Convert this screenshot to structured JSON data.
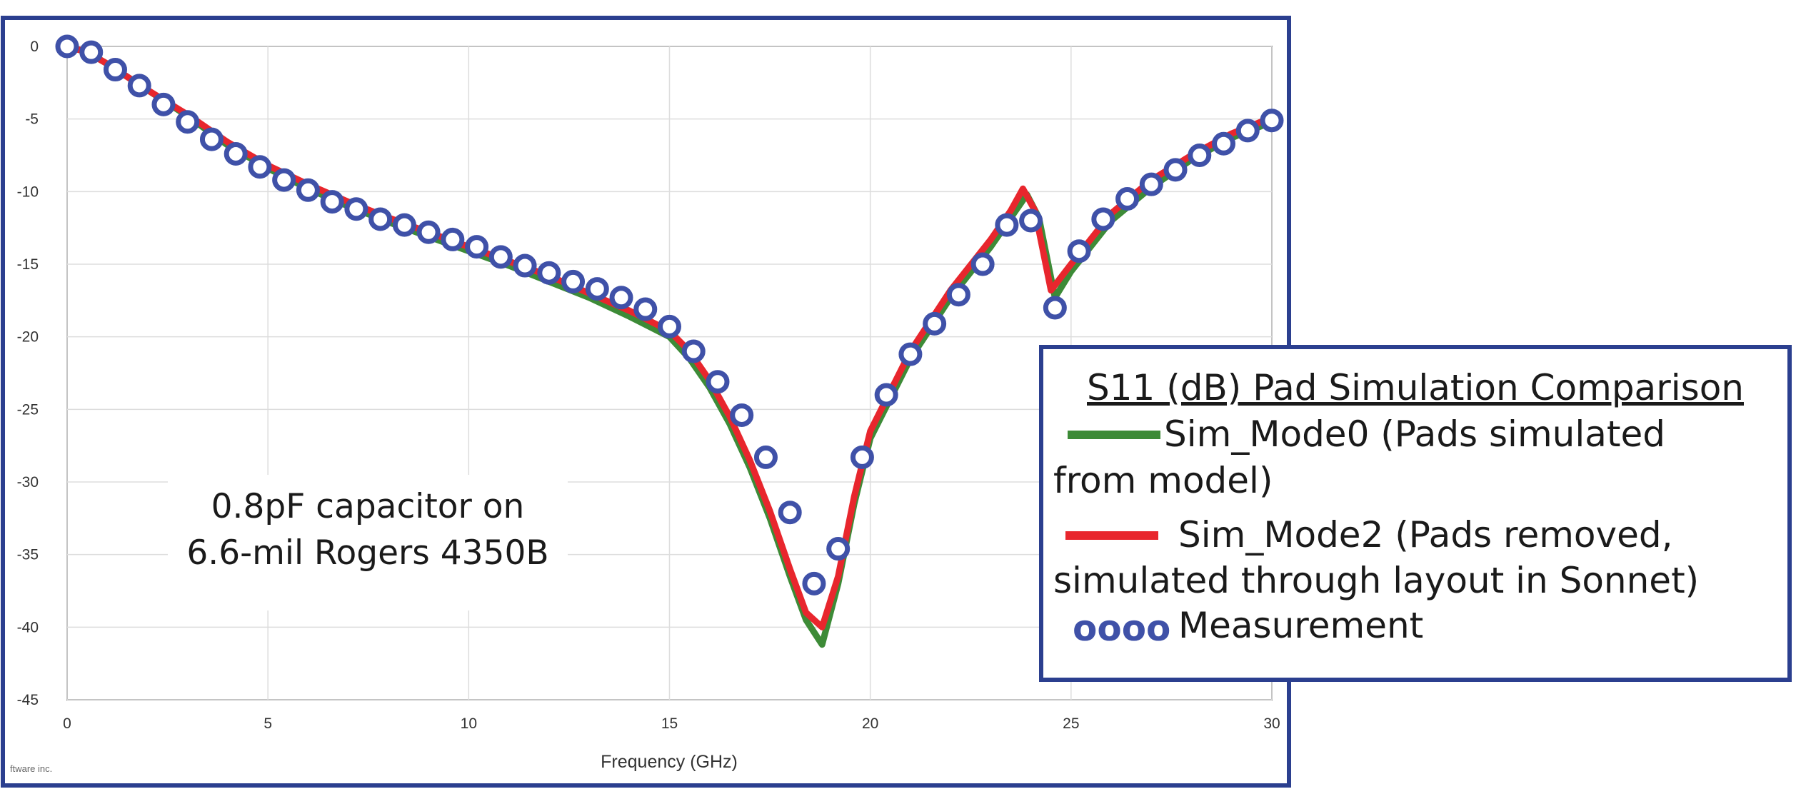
{
  "chart_data": {
    "type": "line",
    "xlabel": "Frequency (GHz)",
    "ylabel": "",
    "xlim": [
      0,
      30
    ],
    "ylim": [
      -45,
      0
    ],
    "xticks": [
      0,
      5,
      10,
      15,
      20,
      25,
      30
    ],
    "yticks": [
      0,
      -5,
      -10,
      -15,
      -20,
      -25,
      -30,
      -35,
      -40,
      -45
    ],
    "grid": true,
    "annotation": [
      "0.8pF capacitor on",
      "6.6-mil Rogers 4350B"
    ],
    "credit": "ftware inc.",
    "legend": {
      "title": "S11 (dB) Pad Simulation Comparison",
      "position": "right",
      "entries": [
        {
          "series": "Sim_Mode0",
          "lines": [
            "Sim_Mode0 (Pads simulated",
            "from model)"
          ]
        },
        {
          "series": "Sim_Mode2",
          "lines": [
            "Sim_Mode2 (Pads removed,",
            "simulated through layout in Sonnet)"
          ]
        },
        {
          "series": "Measurement",
          "lines": [
            "Measurement"
          ],
          "marker_glyphs": "oooo"
        }
      ]
    },
    "series": [
      {
        "name": "Sim_Mode0",
        "kind": "line",
        "color": "#3d8b37",
        "x": [
          0,
          0.5,
          1,
          1.5,
          2,
          3,
          4,
          5,
          6,
          7,
          8,
          9,
          10,
          11,
          12,
          13,
          14,
          15,
          15.5,
          16,
          16.5,
          17,
          17.5,
          18,
          18.4,
          18.8,
          19.2,
          19.6,
          20,
          21,
          22,
          23,
          23.5,
          23.9,
          24.2,
          24.6,
          25,
          26,
          27,
          28,
          29,
          30
        ],
        "y": [
          0,
          -0.4,
          -1.2,
          -2.1,
          -3.0,
          -4.8,
          -6.8,
          -8.4,
          -9.8,
          -11.0,
          -12.1,
          -13.1,
          -14.1,
          -15.1,
          -16.2,
          -17.3,
          -18.6,
          -20.0,
          -21.5,
          -23.5,
          -26.0,
          -29.0,
          -32.5,
          -36.5,
          -39.5,
          -41.2,
          -37.0,
          -31.5,
          -27.0,
          -21.5,
          -17.3,
          -13.8,
          -11.8,
          -10.2,
          -11.8,
          -17.3,
          -15.5,
          -12.0,
          -9.7,
          -7.8,
          -6.3,
          -5.2
        ]
      },
      {
        "name": "Sim_Mode2",
        "kind": "line",
        "color": "#e8262d",
        "x": [
          0,
          0.5,
          1,
          1.5,
          2,
          3,
          4,
          5,
          6,
          7,
          8,
          9,
          10,
          11,
          12,
          13,
          14,
          15,
          15.5,
          16,
          16.5,
          17,
          17.5,
          18,
          18.4,
          18.8,
          19.2,
          19.6,
          20,
          21,
          22,
          23,
          23.5,
          23.8,
          24.1,
          24.5,
          25,
          26,
          27,
          28,
          29,
          30
        ],
        "y": [
          0,
          -0.4,
          -1.2,
          -2.1,
          -3.0,
          -4.7,
          -6.6,
          -8.2,
          -9.5,
          -10.7,
          -11.8,
          -12.8,
          -13.8,
          -14.8,
          -15.8,
          -17.0,
          -18.2,
          -19.6,
          -21.0,
          -23.0,
          -25.5,
          -28.5,
          -32.0,
          -36.0,
          -39.0,
          -40.0,
          -36.5,
          -31.0,
          -26.5,
          -21.0,
          -16.8,
          -13.3,
          -11.3,
          -9.8,
          -11.3,
          -16.8,
          -15.0,
          -11.5,
          -9.2,
          -7.5,
          -6.0,
          -4.9
        ]
      },
      {
        "name": "Measurement",
        "kind": "markers",
        "color": "#3f51a8",
        "x": [
          0,
          0.6,
          1.2,
          1.8,
          2.4,
          3.0,
          3.6,
          4.2,
          4.8,
          5.4,
          6.0,
          6.6,
          7.2,
          7.8,
          8.4,
          9.0,
          9.6,
          10.2,
          10.8,
          11.4,
          12.0,
          12.6,
          13.2,
          13.8,
          14.4,
          15.0,
          15.6,
          16.2,
          16.8,
          17.4,
          18.0,
          18.6,
          19.2,
          19.8,
          20.4,
          21.0,
          21.6,
          22.2,
          22.8,
          23.4,
          24.0,
          24.6,
          25.2,
          25.8,
          26.4,
          27.0,
          27.6,
          28.2,
          28.8,
          29.4,
          30.0
        ],
        "y": [
          0,
          -0.4,
          -1.6,
          -2.7,
          -4.0,
          -5.2,
          -6.4,
          -7.4,
          -8.3,
          -9.2,
          -9.9,
          -10.7,
          -11.2,
          -11.9,
          -12.3,
          -12.8,
          -13.3,
          -13.8,
          -14.5,
          -15.1,
          -15.6,
          -16.2,
          -16.7,
          -17.3,
          -18.1,
          -19.3,
          -21.0,
          -23.1,
          -25.4,
          -28.3,
          -32.1,
          -37.0,
          -34.6,
          -28.3,
          -24.0,
          -21.2,
          -19.1,
          -17.1,
          -15.0,
          -12.3,
          -12.0,
          -18.0,
          -14.1,
          -11.9,
          -10.5,
          -9.5,
          -8.5,
          -7.5,
          -6.7,
          -5.8,
          -5.1
        ]
      }
    ]
  }
}
